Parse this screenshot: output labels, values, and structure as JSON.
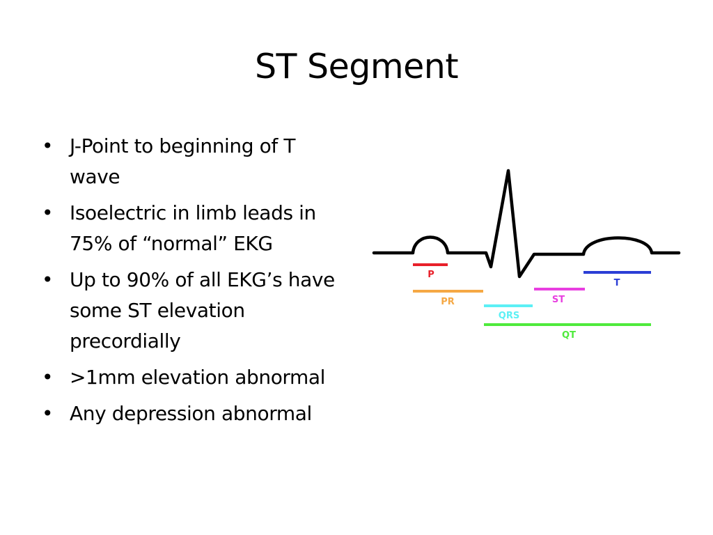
{
  "slide": {
    "title": "ST Segment"
  },
  "bullets": [
    "J-Point to beginning of T wave",
    "Isoelectric in limb leads in 75% of “normal” EKG",
    "Up to 90% of all EKG’s have some ST elevation precordially",
    ">1mm elevation abnormal",
    "Any depression abnormal"
  ],
  "ekg": {
    "labels": {
      "p": "P",
      "pr": "PR",
      "qrs": "QRS",
      "st": "ST",
      "t": "T",
      "qt": "QT"
    },
    "colors": {
      "trace": "#000000",
      "p": "#e8202a",
      "pr": "#f5a844",
      "qrs": "#5cf0f5",
      "st": "#e83fe0",
      "t": "#2b3ed6",
      "qt": "#4fea3c"
    }
  }
}
